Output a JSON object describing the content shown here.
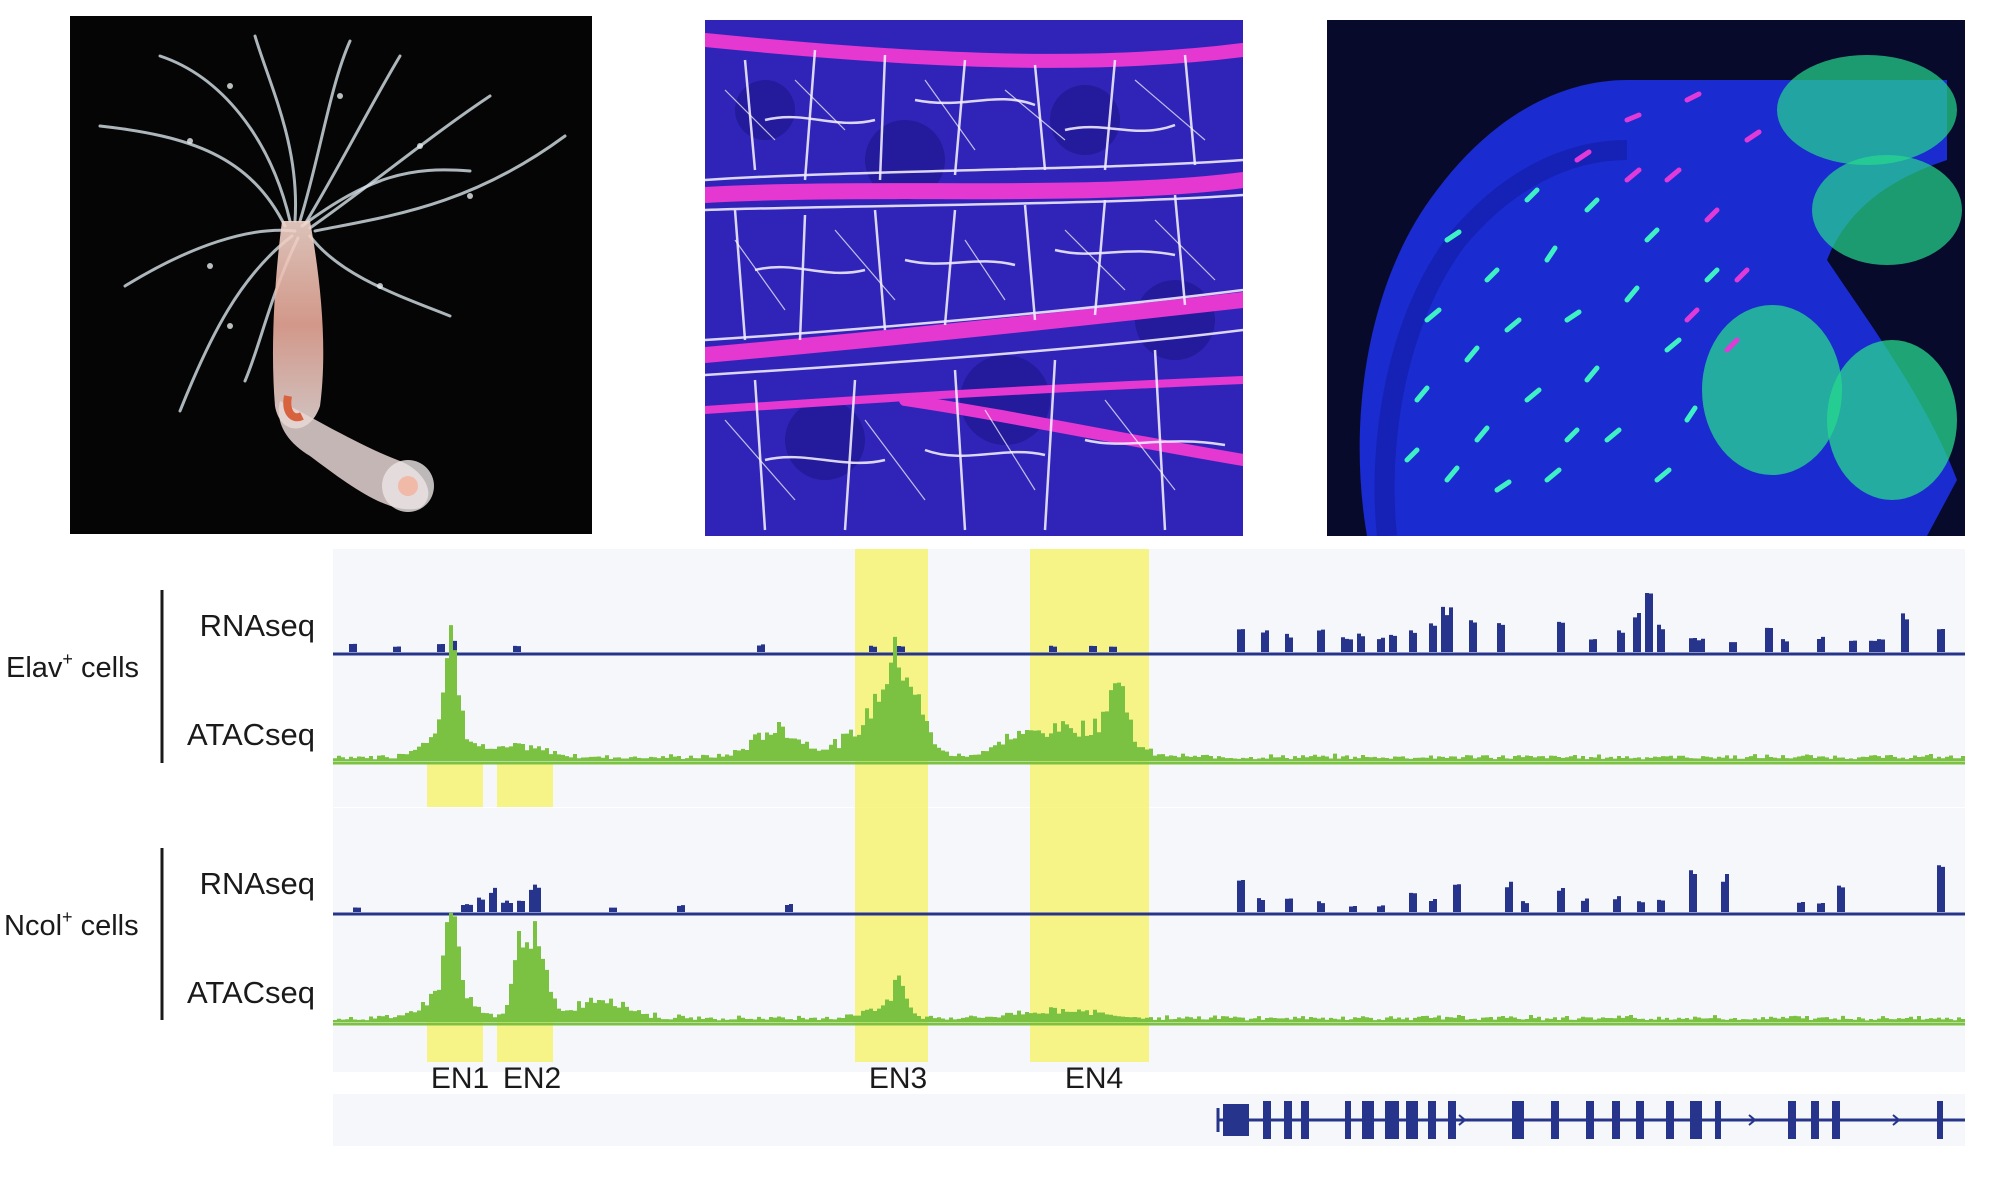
{
  "panels": [
    {
      "name": "hydra-polyp-photo",
      "description": ""
    },
    {
      "name": "nerve-net-micrograph",
      "description": ""
    },
    {
      "name": "nematocyte-micrograph",
      "description": ""
    }
  ],
  "groups": [
    {
      "label": "Elav",
      "superscript": "+",
      "suffix": " cells"
    },
    {
      "label": "Ncol",
      "superscript": "+",
      "suffix": " cells"
    }
  ],
  "track_labels": {
    "rna": "RNAseq",
    "atac": "ATACseq"
  },
  "enhancers": [
    "EN1",
    "EN2",
    "EN3",
    "EN4"
  ],
  "colors": {
    "rna": "#27348b",
    "atac": "#7cc242",
    "highlight": "#f7f36a",
    "track_bg": "#f5f7fa",
    "gene": "#27348b"
  }
}
